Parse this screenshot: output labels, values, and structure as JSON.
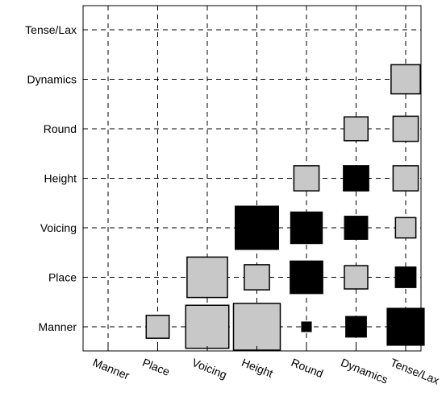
{
  "chart_data": {
    "type": "heatmap",
    "title": "",
    "xlabel": "",
    "ylabel": "",
    "x_categories": [
      "Manner",
      "Place",
      "Voicing",
      "Height",
      "Round",
      "Dynamics",
      "Tense/Lax"
    ],
    "y_categories": [
      "Manner",
      "Place",
      "Voicing",
      "Height",
      "Round",
      "Dynamics",
      "Tense/Lax"
    ],
    "encoding": "Hinton diagram: square area is proportional to magnitude; grey = positive, black = negative",
    "colors": {
      "positive": "#c8c8c8",
      "negative": "#000000",
      "grid": "#000000"
    },
    "grid": true,
    "cells": [
      {
        "x": "Place",
        "y": "Manner",
        "sign": "positive",
        "magnitude": 0.24
      },
      {
        "x": "Voicing",
        "y": "Manner",
        "sign": "positive",
        "magnitude": 0.85
      },
      {
        "x": "Height",
        "y": "Manner",
        "sign": "positive",
        "magnitude": 1.0
      },
      {
        "x": "Round",
        "y": "Manner",
        "sign": "negative",
        "magnitude": 0.04
      },
      {
        "x": "Dynamics",
        "y": "Manner",
        "sign": "negative",
        "magnitude": 0.19
      },
      {
        "x": "Tense/Lax",
        "y": "Manner",
        "sign": "negative",
        "magnitude": 0.62
      },
      {
        "x": "Voicing",
        "y": "Place",
        "sign": "positive",
        "magnitude": 0.75
      },
      {
        "x": "Height",
        "y": "Place",
        "sign": "positive",
        "magnitude": 0.29
      },
      {
        "x": "Round",
        "y": "Place",
        "sign": "negative",
        "magnitude": 0.48
      },
      {
        "x": "Dynamics",
        "y": "Place",
        "sign": "positive",
        "magnitude": 0.25
      },
      {
        "x": "Tense/Lax",
        "y": "Place",
        "sign": "negative",
        "magnitude": 0.19
      },
      {
        "x": "Height",
        "y": "Voicing",
        "sign": "negative",
        "magnitude": 0.85
      },
      {
        "x": "Round",
        "y": "Voicing",
        "sign": "negative",
        "magnitude": 0.45
      },
      {
        "x": "Dynamics",
        "y": "Voicing",
        "sign": "negative",
        "magnitude": 0.24
      },
      {
        "x": "Tense/Lax",
        "y": "Voicing",
        "sign": "positive",
        "magnitude": 0.19
      },
      {
        "x": "Round",
        "y": "Height",
        "sign": "positive",
        "magnitude": 0.29
      },
      {
        "x": "Dynamics",
        "y": "Height",
        "sign": "negative",
        "magnitude": 0.29
      },
      {
        "x": "Tense/Lax",
        "y": "Height",
        "sign": "positive",
        "magnitude": 0.29
      },
      {
        "x": "Dynamics",
        "y": "Round",
        "sign": "positive",
        "magnitude": 0.26
      },
      {
        "x": "Tense/Lax",
        "y": "Round",
        "sign": "positive",
        "magnitude": 0.29
      },
      {
        "x": "Tense/Lax",
        "y": "Dynamics",
        "sign": "positive",
        "magnitude": 0.39
      }
    ]
  }
}
